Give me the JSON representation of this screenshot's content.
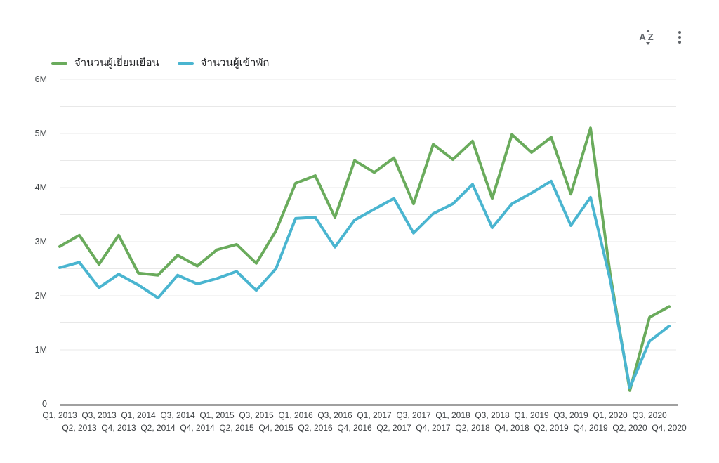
{
  "page": {
    "background": "#ffffff"
  },
  "toolbar": {
    "sort_icon": "az-sort-icon",
    "sort_letters": {
      "a": "A",
      "z": "Z"
    },
    "menu_icon": "kebab-menu-icon"
  },
  "colors": {
    "series_visitors": "#6aab5c",
    "series_guests": "#4ab5d0",
    "gridline": "#e8e8e8",
    "axis_line": "#424242",
    "tick_text": "#3c4043",
    "icon_gray": "#5f6368"
  },
  "chart_data": {
    "type": "line",
    "title": "",
    "legend_position": "top-left",
    "grid": true,
    "unit": "millions",
    "ylim": [
      0,
      6
    ],
    "grid_interval": 0.5,
    "ytick_labels": [
      "0",
      "1M",
      "2M",
      "3M",
      "4M",
      "5M",
      "6M"
    ],
    "x": [
      "Q1, 2013",
      "Q2, 2013",
      "Q3, 2013",
      "Q4, 2013",
      "Q1, 2014",
      "Q2, 2014",
      "Q3, 2014",
      "Q4, 2014",
      "Q1, 2015",
      "Q2, 2015",
      "Q3, 2015",
      "Q4, 2015",
      "Q1, 2016",
      "Q2, 2016",
      "Q3, 2016",
      "Q4, 2016",
      "Q1, 2017",
      "Q2, 2017",
      "Q3, 2017",
      "Q4, 2017",
      "Q1, 2018",
      "Q2, 2018",
      "Q3, 2018",
      "Q4, 2018",
      "Q1, 2019",
      "Q2, 2019",
      "Q3, 2019",
      "Q4, 2019",
      "Q1, 2020",
      "Q2, 2020",
      "Q3, 2020",
      "Q4, 2020"
    ],
    "series": [
      {
        "name": "จำนวนผู้เยี่ยมเยือน",
        "color": "#6aab5c",
        "values": [
          2.91,
          3.12,
          2.58,
          3.12,
          2.42,
          2.38,
          2.75,
          2.55,
          2.85,
          2.95,
          2.6,
          3.2,
          4.08,
          4.22,
          3.45,
          4.5,
          4.28,
          4.55,
          3.7,
          4.8,
          4.52,
          4.86,
          3.8,
          4.98,
          4.65,
          4.93,
          3.88,
          5.1,
          2.4,
          0.25,
          1.6,
          1.8
        ]
      },
      {
        "name": "จำนวนผู้เข้าพัก",
        "color": "#4ab5d0",
        "values": [
          2.52,
          2.62,
          2.15,
          2.4,
          2.2,
          1.96,
          2.38,
          2.22,
          2.32,
          2.45,
          2.1,
          2.5,
          3.43,
          3.45,
          2.9,
          3.4,
          3.6,
          3.8,
          3.16,
          3.52,
          3.7,
          4.06,
          3.26,
          3.7,
          3.9,
          4.12,
          3.3,
          3.82,
          2.3,
          0.3,
          1.16,
          1.44
        ]
      }
    ]
  }
}
